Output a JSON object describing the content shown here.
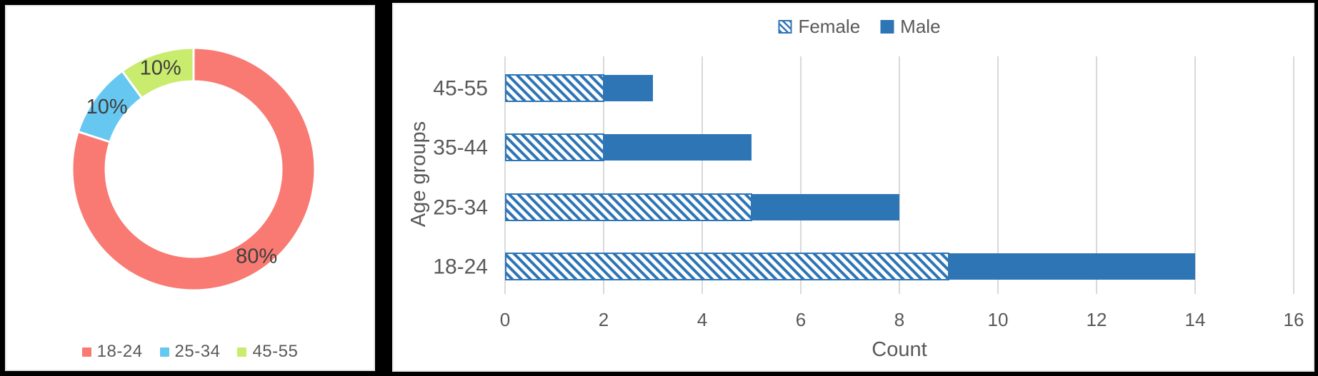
{
  "chart_data": [
    {
      "type": "pie",
      "subtype": "donut",
      "labels": [
        "18-24",
        "25-34",
        "45-55"
      ],
      "values": [
        80,
        10,
        10
      ],
      "value_labels": [
        "80%",
        "10%",
        "10%"
      ],
      "colors": [
        "#F87A72",
        "#66C7F1",
        "#C9EC6E"
      ],
      "start_angle_deg": 0,
      "direction": "clockwise",
      "legend_position": "bottom",
      "label_color": "#3F3F3F",
      "separator_color": "#FFFFFF"
    },
    {
      "type": "bar",
      "orientation": "horizontal",
      "stacked": true,
      "categories": [
        "45-55",
        "35-44",
        "25-34",
        "18-24"
      ],
      "series": [
        {
          "name": "Female",
          "values": [
            2,
            2,
            5,
            9
          ],
          "style": "hatched",
          "color": "#2E75B6"
        },
        {
          "name": "Male",
          "values": [
            1,
            3,
            3,
            5
          ],
          "style": "solid",
          "color": "#2E75B6"
        }
      ],
      "totals": [
        3,
        5,
        8,
        14
      ],
      "xlabel": "Count",
      "ylabel": "Age groups",
      "xlim": [
        0,
        16
      ],
      "xticks": [
        0,
        2,
        4,
        6,
        8,
        10,
        12,
        14,
        16
      ],
      "grid": true,
      "grid_color": "#D9D9D9",
      "text_color": "#595959",
      "legend_position": "top"
    }
  ]
}
